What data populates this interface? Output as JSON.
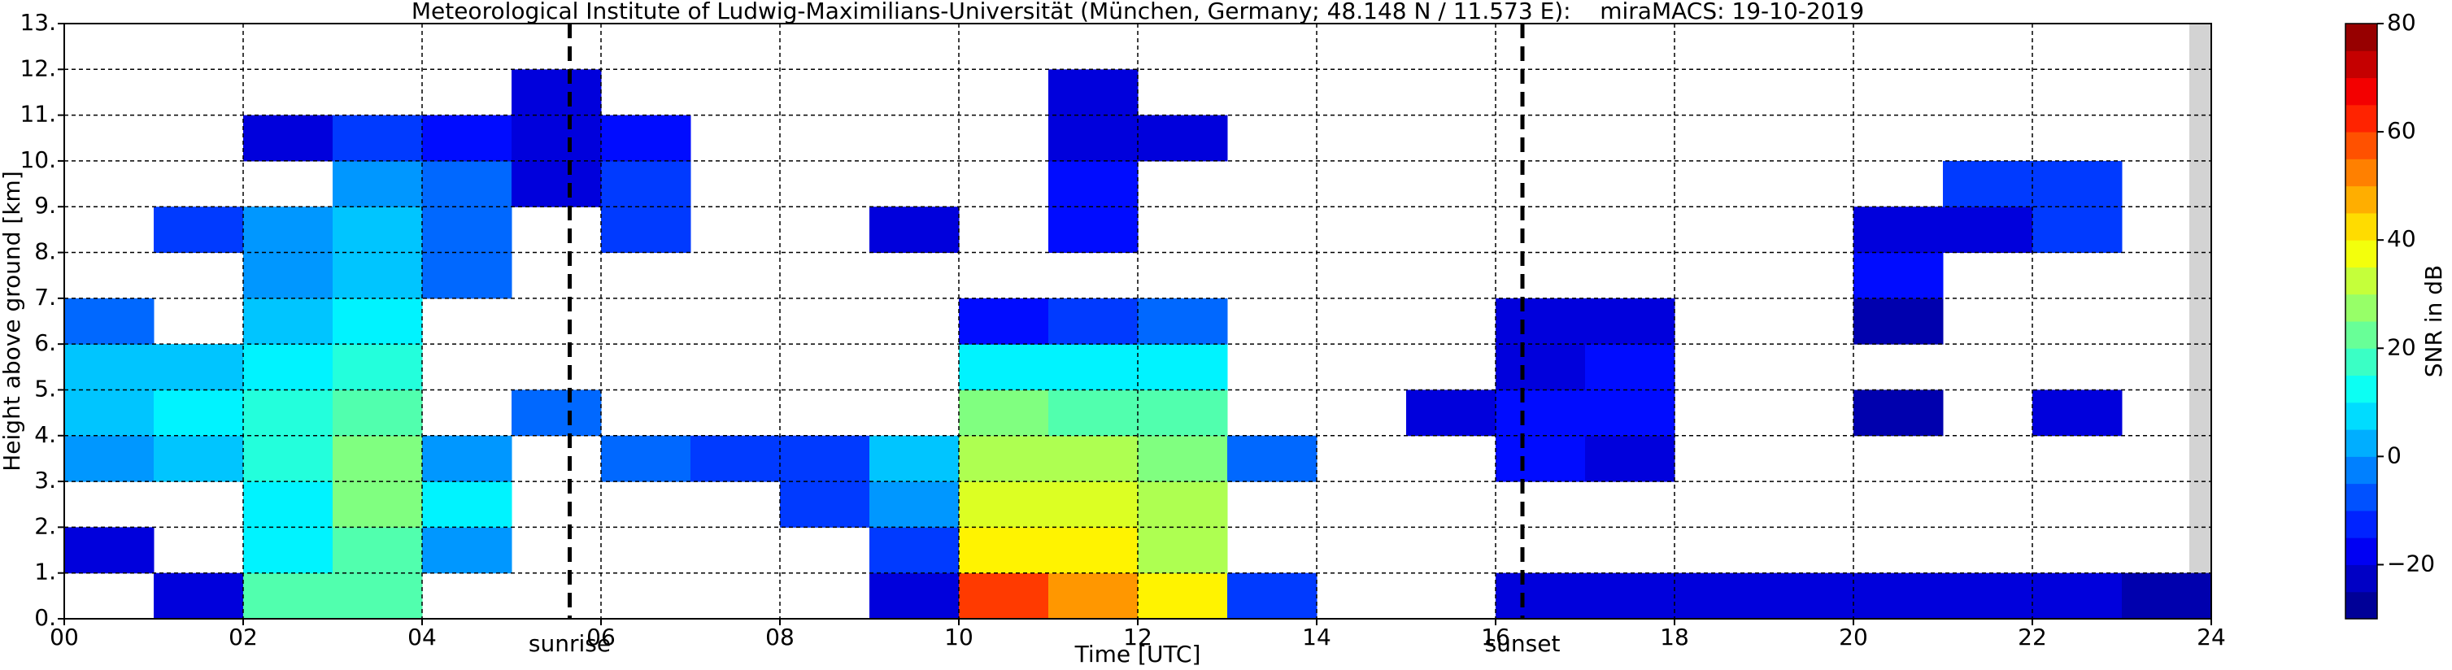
{
  "chart_data": {
    "type": "heatmap",
    "title": "Meteorological Institute of Ludwig-Maximilians-Universität (München, Germany; 48.148 N / 11.573 E):    miraMACS: 19-10-2019",
    "xlabel": "Time [UTC]",
    "ylabel": "Height above ground [km]",
    "colorbar_label": "SNR in dB",
    "xlim": [
      0,
      24
    ],
    "ylim": [
      0,
      13
    ],
    "clim": [
      -30,
      80
    ],
    "xticks": [
      {
        "value": 0,
        "label": "00"
      },
      {
        "value": 2,
        "label": "02"
      },
      {
        "value": 4,
        "label": "04"
      },
      {
        "value": 6,
        "label": "06"
      },
      {
        "value": 8,
        "label": "08"
      },
      {
        "value": 10,
        "label": "10"
      },
      {
        "value": 12,
        "label": "12"
      },
      {
        "value": 14,
        "label": "14"
      },
      {
        "value": 16,
        "label": "16"
      },
      {
        "value": 18,
        "label": "18"
      },
      {
        "value": 20,
        "label": "20"
      },
      {
        "value": 22,
        "label": "22"
      },
      {
        "value": 24,
        "label": "24"
      }
    ],
    "yticks": [
      {
        "value": 0,
        "label": "0."
      },
      {
        "value": 1,
        "label": "1."
      },
      {
        "value": 2,
        "label": "2."
      },
      {
        "value": 3,
        "label": "3."
      },
      {
        "value": 4,
        "label": "4."
      },
      {
        "value": 5,
        "label": "5."
      },
      {
        "value": 6,
        "label": "6."
      },
      {
        "value": 7,
        "label": "7."
      },
      {
        "value": 8,
        "label": "8."
      },
      {
        "value": 9,
        "label": "9."
      },
      {
        "value": 10,
        "label": "10."
      },
      {
        "value": 11,
        "label": "11."
      },
      {
        "value": 12,
        "label": "12."
      },
      {
        "value": 13,
        "label": "13."
      }
    ],
    "cticks": [
      {
        "value": -20,
        "label": "−20"
      },
      0,
      20,
      40,
      60,
      80
    ],
    "grid": true,
    "annotations": [
      {
        "text": "sunrise",
        "x": 5.65
      },
      {
        "text": "sunset",
        "x": 16.3
      }
    ],
    "z": [
      [
        null,
        -20,
        20,
        20,
        null,
        null,
        null,
        null,
        null,
        -20,
        60,
        50,
        40,
        -10,
        null,
        null,
        -20,
        -20,
        -20,
        -20,
        -20,
        -20,
        -20,
        -25
      ],
      [
        -20,
        null,
        10,
        20,
        0,
        null,
        null,
        null,
        null,
        -10,
        40,
        40,
        30,
        null,
        null,
        null,
        null,
        null,
        null,
        null,
        null,
        null,
        null,
        null
      ],
      [
        null,
        null,
        10,
        25,
        10,
        null,
        null,
        null,
        -10,
        0,
        35,
        35,
        30,
        null,
        null,
        null,
        null,
        null,
        null,
        null,
        null,
        null,
        null,
        null
      ],
      [
        0,
        5,
        15,
        25,
        0,
        null,
        -5,
        -10,
        -10,
        5,
        30,
        30,
        25,
        -5,
        null,
        null,
        -15,
        -20,
        null,
        null,
        null,
        null,
        null,
        null
      ],
      [
        5,
        10,
        15,
        20,
        null,
        -5,
        null,
        null,
        null,
        null,
        25,
        20,
        20,
        null,
        null,
        -20,
        -15,
        -15,
        null,
        null,
        -25,
        null,
        -20,
        null
      ],
      [
        5,
        5,
        10,
        15,
        null,
        null,
        null,
        null,
        null,
        null,
        10,
        10,
        10,
        null,
        null,
        null,
        -20,
        -15,
        null,
        null,
        null,
        null,
        null,
        null
      ],
      [
        -5,
        null,
        5,
        10,
        null,
        null,
        null,
        null,
        null,
        null,
        -15,
        -10,
        -5,
        null,
        null,
        null,
        -20,
        -20,
        null,
        null,
        -25,
        null,
        null,
        null
      ],
      [
        null,
        null,
        0,
        5,
        -5,
        null,
        null,
        null,
        null,
        null,
        null,
        null,
        null,
        null,
        null,
        null,
        null,
        null,
        null,
        null,
        -15,
        null,
        null,
        null
      ],
      [
        null,
        -10,
        0,
        5,
        -5,
        null,
        -10,
        null,
        null,
        -20,
        null,
        -15,
        null,
        null,
        null,
        null,
        null,
        null,
        null,
        null,
        -20,
        -20,
        -10,
        null
      ],
      [
        null,
        null,
        null,
        0,
        -5,
        -20,
        -10,
        null,
        null,
        null,
        null,
        -15,
        null,
        null,
        null,
        null,
        null,
        null,
        null,
        null,
        null,
        -10,
        -10,
        null
      ],
      [
        null,
        null,
        -20,
        -10,
        -15,
        -20,
        -15,
        null,
        null,
        null,
        null,
        -20,
        -20,
        null,
        null,
        null,
        null,
        null,
        null,
        null,
        null,
        null,
        null,
        null
      ],
      [
        null,
        null,
        null,
        null,
        null,
        -20,
        null,
        null,
        null,
        null,
        null,
        -20,
        null,
        null,
        null,
        null,
        null,
        null,
        null,
        null,
        null,
        null,
        null,
        null
      ],
      [
        null,
        null,
        null,
        null,
        null,
        null,
        null,
        null,
        null,
        null,
        null,
        null,
        null,
        null,
        null,
        null,
        null,
        null,
        null,
        null,
        null,
        null,
        null,
        null
      ]
    ]
  }
}
